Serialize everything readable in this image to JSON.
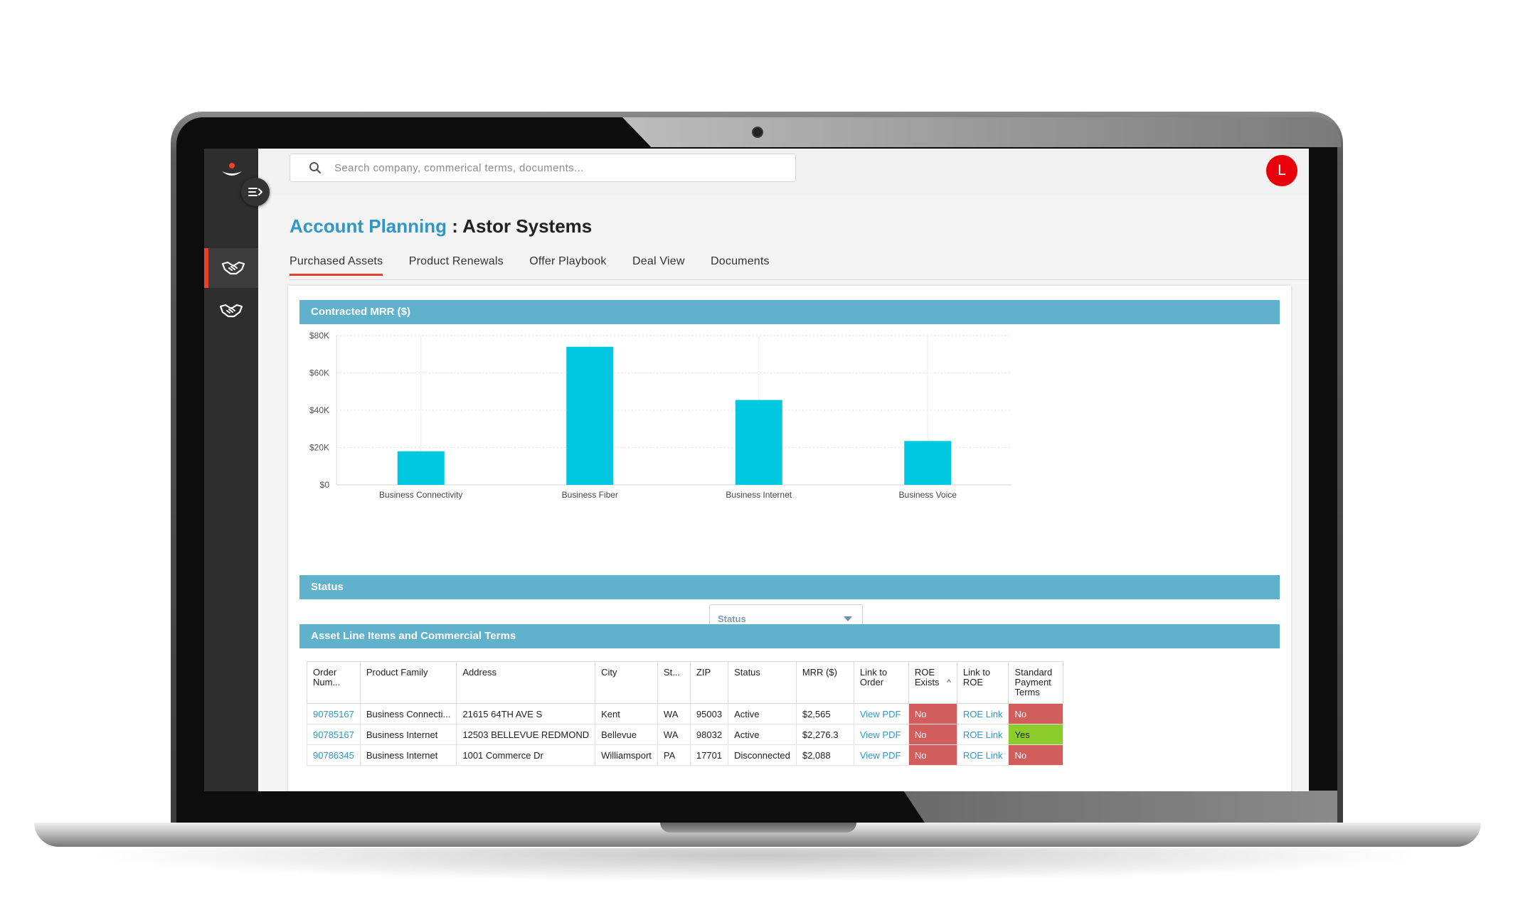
{
  "search": {
    "placeholder": "Search company, commerical terms, documents..."
  },
  "user": {
    "avatar_initial": "L"
  },
  "header": {
    "breadcrumb": "Account Planning",
    "separator": ":",
    "account_name": "Astor Systems"
  },
  "tabs": [
    {
      "label": "Purchased Assets",
      "active": true
    },
    {
      "label": "Product Renewals",
      "active": false
    },
    {
      "label": "Offer Playbook",
      "active": false
    },
    {
      "label": "Deal View",
      "active": false
    },
    {
      "label": "Documents",
      "active": false
    }
  ],
  "sidebar": {
    "items": [
      {
        "icon": "handshake-icon",
        "active": true
      },
      {
        "icon": "handshake-icon",
        "active": false
      }
    ]
  },
  "sections": {
    "mrr_title": "Contracted MRR ($)",
    "status_title": "Status",
    "assets_title": "Asset Line Items and Commercial Terms"
  },
  "status_filter": {
    "label": "Status"
  },
  "chart_data": {
    "type": "bar",
    "title": "Contracted MRR ($)",
    "categories": [
      "Business Connectivity",
      "Business Fiber",
      "Business Internet",
      "Business Voice"
    ],
    "values": [
      18000,
      74000,
      45500,
      23500
    ],
    "ylim": [
      0,
      80000
    ],
    "yticks": [
      0,
      20000,
      40000,
      60000,
      80000
    ],
    "ytick_labels": [
      "$0",
      "$20K",
      "$40K",
      "$60K",
      "$80K"
    ],
    "grid": true,
    "color": "#00c8e0"
  },
  "table": {
    "headers": [
      "Order Num...",
      "Product Family",
      "Address",
      "City",
      "St...",
      "ZIP",
      "Status",
      "MRR ($)",
      "Link to Order",
      "ROE Exists",
      "Link to ROE",
      "Standard Payment Terms"
    ],
    "rows": [
      [
        "90785167",
        "Business Connecti...",
        "21615 64TH AVE S",
        "Kent",
        "WA",
        "95003",
        "Active",
        "$2,565",
        "View PDF",
        "No",
        "ROE Link",
        "No"
      ],
      [
        "90785167",
        "Business Internet",
        "12503 BELLEVUE REDMOND",
        "Bellevue",
        "WA",
        "98032",
        "Active",
        "$2,276.3",
        "View PDF",
        "No",
        "ROE Link",
        "Yes"
      ],
      [
        "90786345",
        "Business Internet",
        "1001 Commerce Dr",
        "Williamsport",
        "PA",
        "17701",
        "Disconnected",
        "$2,088",
        "View PDF",
        "No",
        "ROE Link",
        "No"
      ]
    ]
  }
}
